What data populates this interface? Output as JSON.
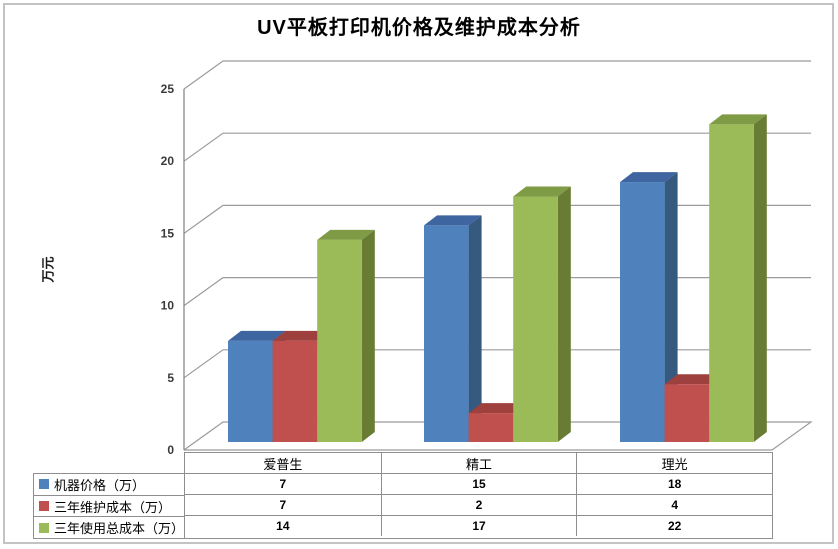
{
  "chart_data": {
    "type": "bar",
    "style": "3d-clustered-column",
    "title": "UV平板打印机价格及维护成本分析",
    "ylabel": "万元",
    "categories": [
      "爱普生",
      "精工",
      "理光"
    ],
    "series": [
      {
        "name": "机器价格（万）",
        "values": [
          7,
          15,
          18
        ],
        "color": "#4f81bd",
        "color_top": "#3e659f",
        "color_side": "#35597f"
      },
      {
        "name": "三年维护成本（万）",
        "values": [
          7,
          2,
          4
        ],
        "color": "#c0504d",
        "color_top": "#9e403e",
        "color_side": "#8a3734"
      },
      {
        "name": "三年使用总成本（万）",
        "values": [
          14,
          17,
          22
        ],
        "color": "#9bbb59",
        "color_top": "#7f9b45",
        "color_side": "#697c33"
      }
    ],
    "yticks": [
      0,
      5,
      10,
      15,
      20,
      25
    ],
    "ylim": [
      0,
      25
    ],
    "grid": true,
    "grid_color": "#9b9b9b",
    "axis_color": "#808080",
    "tick_label_color": "#3a3a3a",
    "legend_position": "left-of-data-table",
    "data_table": true
  }
}
